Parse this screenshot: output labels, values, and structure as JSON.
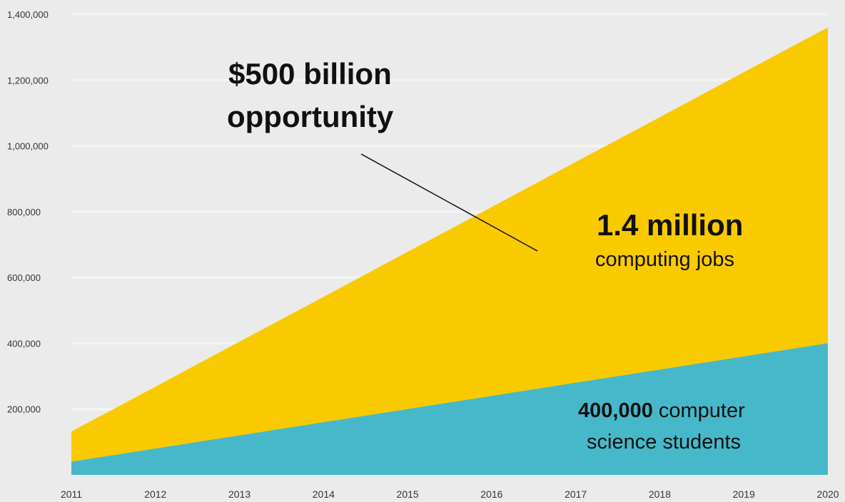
{
  "colors": {
    "background": "#ebebeb",
    "jobs_area": "#f9ca00",
    "students_area": "#46b8ca",
    "gridline": "#f5f5f5",
    "text": "#111111"
  },
  "annotations": {
    "opportunity_line1": "$500 billion",
    "opportunity_line2": "opportunity",
    "jobs_value": "1.4 million",
    "jobs_text": "computing jobs",
    "students_value": "400,000",
    "students_text1": "computer",
    "students_text2": "science students"
  },
  "chart_data": {
    "type": "area",
    "x": [
      2011,
      2012,
      2013,
      2014,
      2015,
      2016,
      2017,
      2018,
      2019,
      2020
    ],
    "xlim": [
      2011,
      2020
    ],
    "ylim": [
      0,
      1400000
    ],
    "grid": true,
    "x_tick_labels": [
      "2011",
      "2012",
      "2013",
      "2014",
      "2015",
      "2016",
      "2017",
      "2018",
      "2019",
      "2020"
    ],
    "y_ticks": [
      200000,
      400000,
      600000,
      800000,
      1000000,
      1200000,
      1400000
    ],
    "y_tick_labels": [
      "200,000",
      "400,000",
      "600,000",
      "800,000",
      "1,000,000",
      "1,200,000",
      "1,400,000"
    ],
    "series": [
      {
        "name": "computing jobs",
        "color": "#f9ca00",
        "values": [
          132000,
          268000,
          405000,
          541000,
          678000,
          814000,
          951000,
          1087000,
          1224000,
          1360000
        ]
      },
      {
        "name": "computer science students",
        "color": "#46b8ca",
        "values": [
          40000,
          80000,
          120000,
          160000,
          200000,
          240000,
          280000,
          320000,
          360000,
          400000
        ]
      }
    ]
  }
}
